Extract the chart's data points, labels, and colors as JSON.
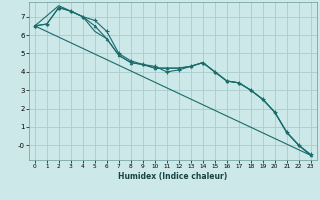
{
  "xlabel": "Humidex (Indice chaleur)",
  "background_color": "#cce8e8",
  "grid_color": "#aacccc",
  "line_color": "#1a6b6b",
  "xlim": [
    -0.5,
    23.5
  ],
  "ylim": [
    -0.8,
    7.8
  ],
  "x_ticks": [
    0,
    1,
    2,
    3,
    4,
    5,
    6,
    7,
    8,
    9,
    10,
    11,
    12,
    13,
    14,
    15,
    16,
    17,
    18,
    19,
    20,
    21,
    22,
    23
  ],
  "y_ticks": [
    0,
    1,
    2,
    3,
    4,
    5,
    6,
    7
  ],
  "series_straight": {
    "x": [
      0,
      23
    ],
    "y": [
      6.5,
      -0.55
    ]
  },
  "series_upper": {
    "x": [
      0,
      1,
      2,
      3,
      4,
      5,
      6,
      7,
      8,
      9,
      10,
      11,
      12,
      13,
      14,
      15,
      16,
      17,
      18,
      19,
      20,
      21,
      22,
      23
    ],
    "y": [
      6.5,
      6.6,
      7.5,
      7.3,
      7.0,
      6.8,
      6.2,
      5.0,
      4.6,
      4.4,
      4.3,
      4.0,
      4.1,
      4.3,
      4.5,
      4.0,
      3.5,
      3.4,
      3.0,
      2.5,
      1.8,
      0.7,
      0.0,
      -0.5
    ]
  },
  "series_mid1": {
    "x": [
      0,
      1,
      2,
      3,
      4,
      5,
      6,
      7,
      8,
      9,
      10,
      11,
      12,
      13,
      14,
      15,
      16,
      17,
      18,
      19,
      20,
      21,
      22,
      23
    ],
    "y": [
      6.5,
      6.6,
      7.5,
      7.3,
      7.0,
      6.5,
      5.8,
      4.9,
      4.5,
      4.4,
      4.2,
      4.2,
      4.2,
      4.3,
      4.5,
      4.0,
      3.5,
      3.4,
      3.0,
      2.5,
      1.8,
      0.7,
      0.0,
      -0.55
    ]
  },
  "series_mid2": {
    "x": [
      0,
      2,
      3,
      4,
      5,
      6,
      7,
      8,
      9,
      10,
      11,
      12,
      13,
      14,
      15,
      16,
      17,
      18,
      19,
      20,
      21,
      22,
      23
    ],
    "y": [
      6.5,
      7.6,
      7.3,
      7.0,
      6.2,
      5.8,
      4.9,
      4.5,
      4.4,
      4.2,
      4.2,
      4.2,
      4.3,
      4.5,
      4.0,
      3.5,
      3.4,
      3.0,
      2.5,
      1.8,
      0.7,
      0.0,
      -0.55
    ]
  }
}
